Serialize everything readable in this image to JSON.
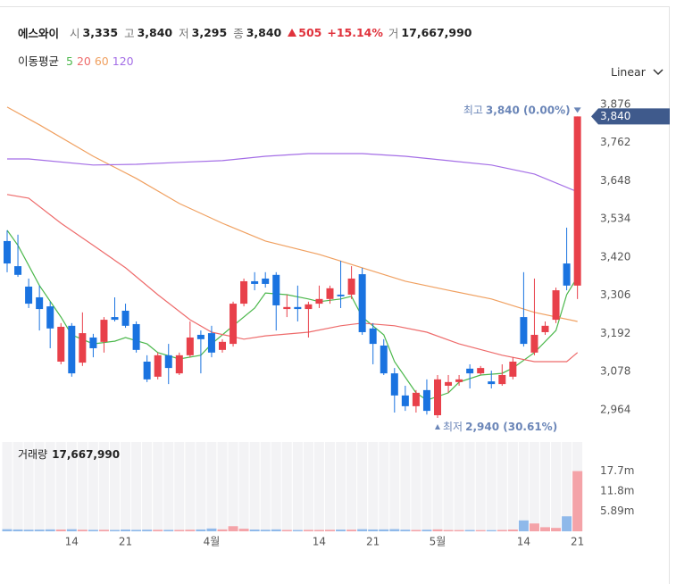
{
  "chart_data": {
    "type": "candlestick",
    "title": "에스와이",
    "header": [
      {
        "label": "시",
        "value": "3,335"
      },
      {
        "label": "고",
        "value": "3,840"
      },
      {
        "label": "저",
        "value": "3,295"
      },
      {
        "label": "종",
        "value": "3,840"
      }
    ],
    "change": {
      "value": "505",
      "percent": "+15.14%"
    },
    "header_volume": {
      "label": "거",
      "value": "17,667,990"
    },
    "ma_title": "이동평균",
    "scale": "Linear",
    "categories": [
      null,
      null,
      null,
      null,
      null,
      null,
      "14",
      null,
      null,
      null,
      null,
      "21",
      null,
      null,
      null,
      null,
      null,
      null,
      null,
      "4월",
      null,
      null,
      null,
      null,
      null,
      null,
      null,
      null,
      null,
      "14",
      null,
      null,
      null,
      null,
      "21",
      null,
      null,
      null,
      null,
      null,
      "5월",
      null,
      null,
      null,
      null,
      null,
      null,
      null,
      "14",
      null,
      null,
      null,
      null,
      "21"
    ],
    "open": [
      3468,
      3393,
      3332,
      3300,
      3273,
      3108,
      3215,
      3105,
      3180,
      3167,
      3241,
      3260,
      3220,
      3108,
      3063,
      3127,
      3073,
      3127,
      3188,
      3193,
      3143,
      3161,
      3281,
      3348,
      3356,
      3367,
      3265,
      3271,
      3265,
      3281,
      3295,
      3308,
      3308,
      3369,
      3207,
      3156,
      3073,
      3007,
      2975,
      3023,
      2948,
      3036,
      3047,
      3087,
      3073,
      3049,
      3041,
      3063,
      3241,
      3135,
      3196,
      3233,
      3401,
      3335
    ],
    "high": [
      3500,
      3487,
      3356,
      3335,
      3287,
      3223,
      3223,
      3255,
      3191,
      3241,
      3300,
      3281,
      3228,
      3127,
      3135,
      3161,
      3135,
      3228,
      3201,
      3215,
      3175,
      3287,
      3356,
      3375,
      3375,
      3375,
      3308,
      3335,
      3287,
      3335,
      3335,
      3409,
      3393,
      3388,
      3223,
      3175,
      3089,
      3036,
      3023,
      3055,
      3068,
      3068,
      3068,
      3100,
      3095,
      3081,
      3100,
      3121,
      3375,
      3356,
      3228,
      3329,
      3508,
      3840
    ],
    "low": [
      3375,
      3361,
      3268,
      3201,
      3148,
      3100,
      3063,
      3095,
      3121,
      3135,
      3228,
      3209,
      3135,
      3047,
      3055,
      3041,
      3068,
      3121,
      3073,
      3121,
      3135,
      3153,
      3273,
      3321,
      3329,
      3201,
      3241,
      3228,
      3180,
      3268,
      3281,
      3268,
      3295,
      3188,
      3100,
      3068,
      2956,
      2961,
      2956,
      2950,
      2940,
      3015,
      3036,
      3028,
      3068,
      3028,
      3036,
      3055,
      3153,
      3127,
      3188,
      3223,
      3321,
      3295
    ],
    "close": [
      3401,
      3367,
      3281,
      3265,
      3207,
      3212,
      3073,
      3193,
      3148,
      3233,
      3233,
      3215,
      3143,
      3055,
      3127,
      3089,
      3127,
      3180,
      3175,
      3135,
      3167,
      3281,
      3348,
      3340,
      3340,
      3276,
      3271,
      3265,
      3279,
      3295,
      3327,
      3303,
      3356,
      3196,
      3161,
      3073,
      3007,
      2975,
      3015,
      2961,
      3055,
      3047,
      3055,
      3073,
      3089,
      3041,
      3068,
      3108,
      3161,
      3188,
      3215,
      3321,
      3335,
      3840
    ],
    "up_color": "#e8404a",
    "down_color": "#1a73e0",
    "ylim": [
      2908,
      3921
    ],
    "yticks": [
      {
        "value": 3876,
        "label": "3,876"
      },
      {
        "value": 3762,
        "label": "3,762"
      },
      {
        "value": 3648,
        "label": "3,648"
      },
      {
        "value": 3534,
        "label": "3,534"
      },
      {
        "value": 3420,
        "label": "3,420"
      },
      {
        "value": 3306,
        "label": "3,306"
      },
      {
        "value": 3192,
        "label": "3,192"
      },
      {
        "value": 3078,
        "label": "3,078"
      },
      {
        "value": 2964,
        "label": "2,964"
      }
    ],
    "series": [
      {
        "name": "5",
        "color": "#4cb84c",
        "x": [
          0,
          1,
          3,
          5,
          6,
          8,
          10,
          11,
          13,
          14,
          16,
          18,
          19,
          21,
          23,
          24,
          26,
          28,
          29,
          31,
          32,
          33,
          35,
          36,
          38,
          39,
          41,
          42,
          44,
          46,
          47,
          49,
          51,
          52,
          53
        ],
        "values": [
          3500,
          3455,
          3335,
          3241,
          3188,
          3161,
          3169,
          3180,
          3161,
          3135,
          3116,
          3127,
          3161,
          3215,
          3268,
          3313,
          3308,
          3295,
          3287,
          3295,
          3303,
          3241,
          3188,
          3108,
          3015,
          2993,
          3015,
          3047,
          3068,
          3073,
          3089,
          3135,
          3201,
          3308,
          3361
        ]
      },
      {
        "name": "20",
        "color": "#ee6b6b",
        "x": [
          0,
          2,
          5,
          8,
          11,
          14,
          17,
          19,
          22,
          24,
          28,
          31,
          33,
          36,
          39,
          42,
          46,
          49,
          52,
          53
        ],
        "values": [
          3607,
          3596,
          3521,
          3455,
          3388,
          3308,
          3233,
          3196,
          3175,
          3185,
          3196,
          3215,
          3223,
          3215,
          3196,
          3161,
          3127,
          3108,
          3108,
          3135
        ]
      },
      {
        "name": "60",
        "color": "#f0a060",
        "x": [
          0,
          3,
          8,
          12,
          16,
          20,
          24,
          29,
          33,
          37,
          41,
          45,
          49,
          53
        ],
        "values": [
          3868,
          3815,
          3721,
          3655,
          3580,
          3521,
          3468,
          3428,
          3388,
          3348,
          3321,
          3295,
          3255,
          3228
        ]
      },
      {
        "name": "120",
        "color": "#a46ee6",
        "x": [
          0,
          2,
          8,
          12,
          16,
          20,
          24,
          28,
          33,
          37,
          41,
          45,
          49,
          53
        ],
        "values": [
          3713,
          3713,
          3695,
          3697,
          3703,
          3708,
          3721,
          3729,
          3729,
          3721,
          3708,
          3695,
          3668,
          3615
        ]
      }
    ],
    "last_price_label": "3,840",
    "annotations": [
      {
        "label": "최고",
        "value": "3,840 (0.00%)"
      },
      {
        "label": "최저",
        "value": "2,940 (30.61%)"
      }
    ],
    "volume": {
      "title": "거래량",
      "text": "17,667,990",
      "values": [
        620000,
        540000,
        480000,
        500000,
        560000,
        520000,
        610000,
        470000,
        430000,
        450000,
        400000,
        520000,
        430000,
        480000,
        440000,
        420000,
        410000,
        470000,
        540000,
        820000,
        560000,
        1500000,
        760000,
        520000,
        460000,
        560000,
        400000,
        380000,
        420000,
        400000,
        440000,
        500000,
        480000,
        620000,
        540000,
        560000,
        640000,
        480000,
        400000,
        460000,
        560000,
        380000,
        360000,
        380000,
        340000,
        340000,
        400000,
        520000,
        3200000,
        2300000,
        1200000,
        1000000,
        4400000,
        17667990
      ],
      "up_color": "#f4a3a8",
      "down_color": "#8fb9ea",
      "ylim": [
        0,
        26200000
      ],
      "yticks": [
        {
          "value": 17700000,
          "label": "17.7m"
        },
        {
          "value": 11800000,
          "label": "11.8m"
        },
        {
          "value": 5890000,
          "label": "5.89m"
        }
      ]
    }
  }
}
